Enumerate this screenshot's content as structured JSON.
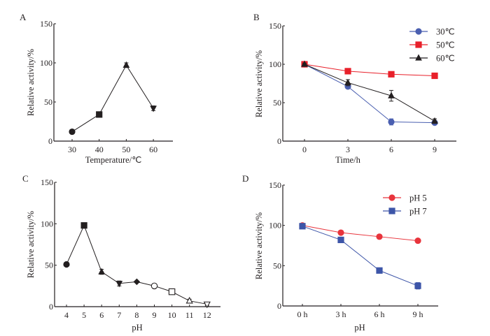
{
  "chart_data": [
    {
      "id": "A",
      "panel_label": "A",
      "type": "line",
      "xlabel": "Temperature/℃",
      "ylabel": "Relative activity/%",
      "ylim": [
        0,
        150
      ],
      "yticks": [
        0,
        50,
        100,
        150
      ],
      "categories": [
        "30",
        "40",
        "50",
        "60"
      ],
      "series": [
        {
          "name": "activity",
          "color": "#231f20",
          "markers": [
            "circle",
            "square",
            "triangle-up",
            "triangle-down"
          ],
          "values": [
            12,
            34,
            97,
            42
          ],
          "errors": [
            1,
            2,
            3,
            3
          ]
        }
      ],
      "legend": null
    },
    {
      "id": "B",
      "panel_label": "B",
      "type": "line",
      "xlabel": "Time/h",
      "ylabel": "Relative activity/%",
      "ylim": [
        0,
        150
      ],
      "yticks": [
        0,
        50,
        100,
        150
      ],
      "categories": [
        "0",
        "3",
        "6",
        "9"
      ],
      "series": [
        {
          "name": "30℃",
          "color": "#4a5fb0",
          "marker": "circle",
          "values": [
            100,
            71,
            25,
            24
          ],
          "errors": [
            1,
            2,
            4,
            2
          ]
        },
        {
          "name": "50℃",
          "color": "#e8202a",
          "marker": "square",
          "values": [
            100,
            91,
            87,
            85
          ],
          "errors": [
            1,
            1,
            1,
            1
          ]
        },
        {
          "name": "60℃",
          "color": "#231f20",
          "marker": "triangle-up",
          "values": [
            100,
            76,
            59,
            26
          ],
          "errors": [
            1,
            4,
            7,
            3
          ]
        }
      ],
      "legend": "top-right"
    },
    {
      "id": "C",
      "panel_label": "C",
      "type": "line",
      "xlabel": "pH",
      "ylabel": "Relative activity/%",
      "ylim": [
        0,
        150
      ],
      "yticks": [
        0,
        50,
        100,
        150
      ],
      "categories": [
        "4",
        "5",
        "6",
        "7",
        "8",
        "9",
        "10",
        "11",
        "12"
      ],
      "series": [
        {
          "name": "activity",
          "color": "#231f20",
          "markers": [
            "circle",
            "square",
            "triangle-up",
            "triangle-down",
            "diamond",
            "circle-open",
            "square-open",
            "triangle-up-open",
            "triangle-down-open"
          ],
          "values": [
            51,
            98,
            42,
            28,
            30,
            25,
            18,
            7,
            3
          ],
          "errors": [
            1,
            1,
            3,
            3,
            1,
            2,
            2,
            2,
            2
          ]
        }
      ],
      "legend": null
    },
    {
      "id": "D",
      "panel_label": "D",
      "type": "line",
      "xlabel": "pH",
      "ylabel": "Relative activity/%",
      "ylim": [
        0,
        150
      ],
      "yticks": [
        0,
        50,
        100,
        150
      ],
      "categories": [
        "0 h",
        "3 h",
        "6 h",
        "9 h"
      ],
      "series": [
        {
          "name": "pH 5",
          "color": "#e8343c",
          "marker": "circle",
          "values": [
            100,
            91,
            86,
            81
          ],
          "errors": [
            1,
            1,
            1,
            1
          ]
        },
        {
          "name": "pH 7",
          "color": "#3d55a8",
          "marker": "square",
          "values": [
            99,
            82,
            44,
            25
          ],
          "errors": [
            1,
            1,
            2,
            4
          ]
        }
      ],
      "legend": "top-right"
    }
  ]
}
